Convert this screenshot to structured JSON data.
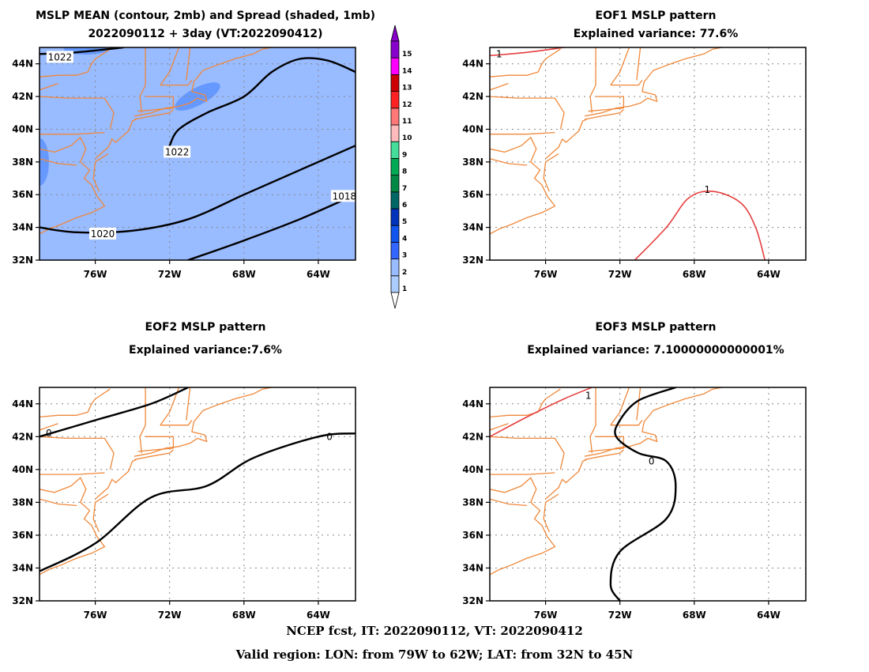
{
  "colors": {
    "coast": "#f0883a",
    "shade_fill": "#99bbff",
    "shade_dark": "#6699ff",
    "mean_contour": "#000000",
    "eof_positive": "#e53e3e",
    "grid": "#888888"
  },
  "footer": {
    "line1": "NCEP fcst, IT: 2022090112, VT: 2022090412",
    "line2": "Valid region: LON: from 79W to 62W; LAT: from 32N to 45N"
  },
  "colorbar": {
    "levels": [
      "1",
      "2",
      "3",
      "4",
      "5",
      "6",
      "7",
      "8",
      "9",
      "10",
      "11",
      "12",
      "13",
      "14",
      "15"
    ],
    "colors": [
      "#ffffff",
      "#aaccff",
      "#99bbff",
      "#3366ff",
      "#1155ee",
      "#0033bb",
      "#006666",
      "#008844",
      "#00aa55",
      "#44dd99",
      "#ffbbbb",
      "#ff7777",
      "#ff2222",
      "#cc0000",
      "#ff00ff",
      "#8800cc"
    ]
  },
  "chart_data": [
    {
      "type": "contour",
      "title": "MSLP MEAN (contour, 2mb) and Spread (shaded, 1mb)",
      "subtitle": "2022090112 + 3day (VT:2022090412)",
      "x_ticks": [
        "76W",
        "72W",
        "68W",
        "64W"
      ],
      "y_ticks": [
        "44N",
        "42N",
        "40N",
        "38N",
        "36N",
        "34N",
        "32N"
      ],
      "xlim": [
        -79,
        -62
      ],
      "ylim": [
        32,
        45
      ],
      "shaded_spread_mb": 3,
      "contours": [
        {
          "level": "1022",
          "points": [
            [
              -79.0,
              44.6
            ],
            [
              -77.0,
              44.7
            ],
            [
              -74.5,
              45.0
            ]
          ]
        },
        {
          "level": "1022",
          "points": [
            [
              -72.0,
              39.0
            ],
            [
              -71.5,
              40.0
            ],
            [
              -70.0,
              41.0
            ],
            [
              -68.0,
              42.0
            ],
            [
              -66.5,
              43.5
            ],
            [
              -65.0,
              44.3
            ],
            [
              -63.5,
              44.2
            ],
            [
              -62.0,
              43.5
            ]
          ]
        },
        {
          "level": "1020",
          "points": [
            [
              -79.0,
              34.0
            ],
            [
              -77.0,
              33.7
            ],
            [
              -74.0,
              33.8
            ],
            [
              -71.0,
              34.5
            ],
            [
              -68.0,
              36.0
            ],
            [
              -65.0,
              37.5
            ],
            [
              -62.0,
              39.0
            ]
          ]
        },
        {
          "level": "1018",
          "points": [
            [
              -71.0,
              32.0
            ],
            [
              -68.0,
              33.2
            ],
            [
              -65.0,
              34.5
            ],
            [
              -62.0,
              36.0
            ]
          ]
        }
      ],
      "contour_labels": [
        {
          "text": "1022",
          "x": -77.9,
          "y": 44.4
        },
        {
          "text": "1022",
          "x": -71.6,
          "y": 38.6
        },
        {
          "text": "1020",
          "x": -75.6,
          "y": 33.6
        },
        {
          "text": "1018",
          "x": -62.6,
          "y": 35.9
        }
      ]
    },
    {
      "type": "contour",
      "title": "EOF1 MSLP pattern",
      "subtitle": "Explained variance: 77.6%",
      "x_ticks": [
        "76W",
        "72W",
        "68W",
        "64W"
      ],
      "y_ticks": [
        "44N",
        "42N",
        "40N",
        "38N",
        "36N",
        "34N",
        "32N"
      ],
      "xlim": [
        -79,
        -62
      ],
      "ylim": [
        32,
        45
      ],
      "explained_variance_pct": 77.6,
      "contours": [
        {
          "level": "1",
          "points": [
            [
              -79.0,
              44.5
            ],
            [
              -77.0,
              44.7
            ],
            [
              -75.0,
              45.0
            ]
          ]
        },
        {
          "level": "1",
          "points": [
            [
              -71.2,
              32.0
            ],
            [
              -69.5,
              34.0
            ],
            [
              -68.3,
              35.8
            ],
            [
              -67.0,
              36.2
            ],
            [
              -65.5,
              35.5
            ],
            [
              -64.7,
              34.0
            ],
            [
              -64.2,
              32.0
            ]
          ]
        }
      ],
      "contour_labels": [
        {
          "text": "1",
          "x": -78.5,
          "y": 44.6
        },
        {
          "text": "1",
          "x": -67.3,
          "y": 36.3
        }
      ]
    },
    {
      "type": "contour",
      "title": "EOF2 MSLP pattern",
      "subtitle": "Explained variance:7.6%",
      "x_ticks": [
        "76W",
        "72W",
        "68W",
        "64W"
      ],
      "y_ticks": [
        "44N",
        "42N",
        "40N",
        "38N",
        "36N",
        "34N",
        "32N"
      ],
      "xlim": [
        -79,
        -62
      ],
      "ylim": [
        32,
        45
      ],
      "explained_variance_pct": 7.6,
      "contours": [
        {
          "level": "0",
          "points": [
            [
              -79.0,
              42.0
            ],
            [
              -76.0,
              43.0
            ],
            [
              -73.0,
              44.0
            ],
            [
              -71.0,
              45.0
            ]
          ]
        },
        {
          "level": "0",
          "points": [
            [
              -79.0,
              33.8
            ],
            [
              -76.0,
              35.5
            ],
            [
              -73.0,
              38.3
            ],
            [
              -70.0,
              39.0
            ],
            [
              -67.5,
              40.7
            ],
            [
              -64.0,
              42.0
            ],
            [
              -62.0,
              42.2
            ]
          ]
        }
      ],
      "contour_labels": [
        {
          "text": "0",
          "x": -78.5,
          "y": 42.2
        },
        {
          "text": "0",
          "x": -63.4,
          "y": 42.0
        }
      ]
    },
    {
      "type": "contour",
      "title": "EOF3 MSLP pattern",
      "subtitle": "Explained variance: 7.10000000000001%",
      "x_ticks": [
        "76W",
        "72W",
        "68W",
        "64W"
      ],
      "y_ticks": [
        "44N",
        "42N",
        "40N",
        "38N",
        "36N",
        "34N",
        "32N"
      ],
      "xlim": [
        -79,
        -62
      ],
      "ylim": [
        32,
        45
      ],
      "explained_variance_pct": 7.1,
      "contours": [
        {
          "level": "1",
          "points": [
            [
              -79.0,
              42.0
            ],
            [
              -77.0,
              43.2
            ],
            [
              -75.0,
              44.3
            ],
            [
              -73.5,
              45.0
            ]
          ]
        },
        {
          "level": "0",
          "points": [
            [
              -69.0,
              45.0
            ],
            [
              -71.0,
              44.2
            ],
            [
              -72.0,
              43.0
            ],
            [
              -72.2,
              42.0
            ],
            [
              -71.0,
              41.0
            ],
            [
              -69.5,
              40.5
            ],
            [
              -69.0,
              39.0
            ],
            [
              -69.5,
              37.0
            ],
            [
              -72.0,
              35.0
            ],
            [
              -72.5,
              33.0
            ],
            [
              -72.0,
              32.0
            ]
          ]
        }
      ],
      "contour_labels": [
        {
          "text": "1",
          "x": -73.7,
          "y": 44.5
        },
        {
          "text": "0",
          "x": -70.3,
          "y": 40.5
        }
      ]
    }
  ]
}
